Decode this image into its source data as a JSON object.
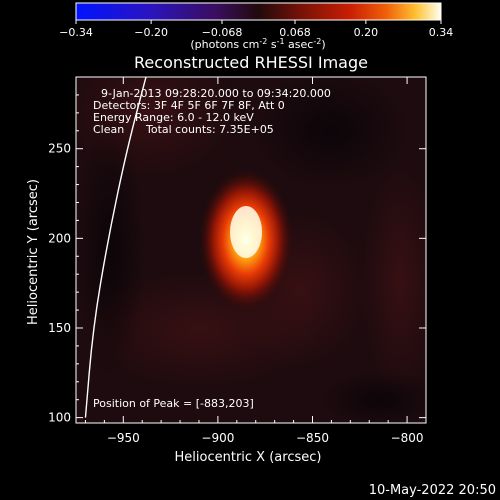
{
  "plot": {
    "title": "Reconstructed RHESSI Image",
    "footer_date": "10-May-2022 20:50",
    "info": {
      "line1": "9-Jan-2013 09:28:20.000 to 09:34:20.000",
      "line2": "Detectors: 3F 4F 5F 6F 7F 8F, Att 0",
      "line3": "Energy Range: 6.0 - 12.0 keV",
      "line4_left": "Clean",
      "line4_right": "Total counts: 7.35E+05"
    },
    "peak_label": "Position of Peak = [-883,203]"
  },
  "colorbar": {
    "ticks": [
      "-0.34",
      "-0.20",
      "-0.068",
      "0.068",
      "0.20",
      "0.34"
    ],
    "unit_text": "(photons cm",
    "unit_sup1": "-2",
    "unit_mid1": " s",
    "unit_sup2": "-1",
    "unit_mid2": " asec",
    "unit_sup3": "-2",
    "unit_end": ")",
    "range": [
      -0.34,
      0.34
    ]
  },
  "chart_data": {
    "type": "heatmap",
    "title": "Reconstructed RHESSI Image",
    "xlabel": "Heliocentric X (arcsec)",
    "ylabel": "Heliocentric Y (arcsec)",
    "xlim": [
      -975,
      -790
    ],
    "ylim": [
      97,
      290
    ],
    "x_ticks": [
      -950,
      -900,
      -850,
      -800
    ],
    "y_ticks": [
      100,
      150,
      200,
      250
    ],
    "peak": {
      "x": -883,
      "y": 203,
      "value": 0.34
    },
    "limb_curve": [
      [
        -970,
        100
      ],
      [
        -966,
        150
      ],
      [
        -958,
        200
      ],
      [
        -948,
        250
      ],
      [
        -938,
        290
      ]
    ]
  }
}
